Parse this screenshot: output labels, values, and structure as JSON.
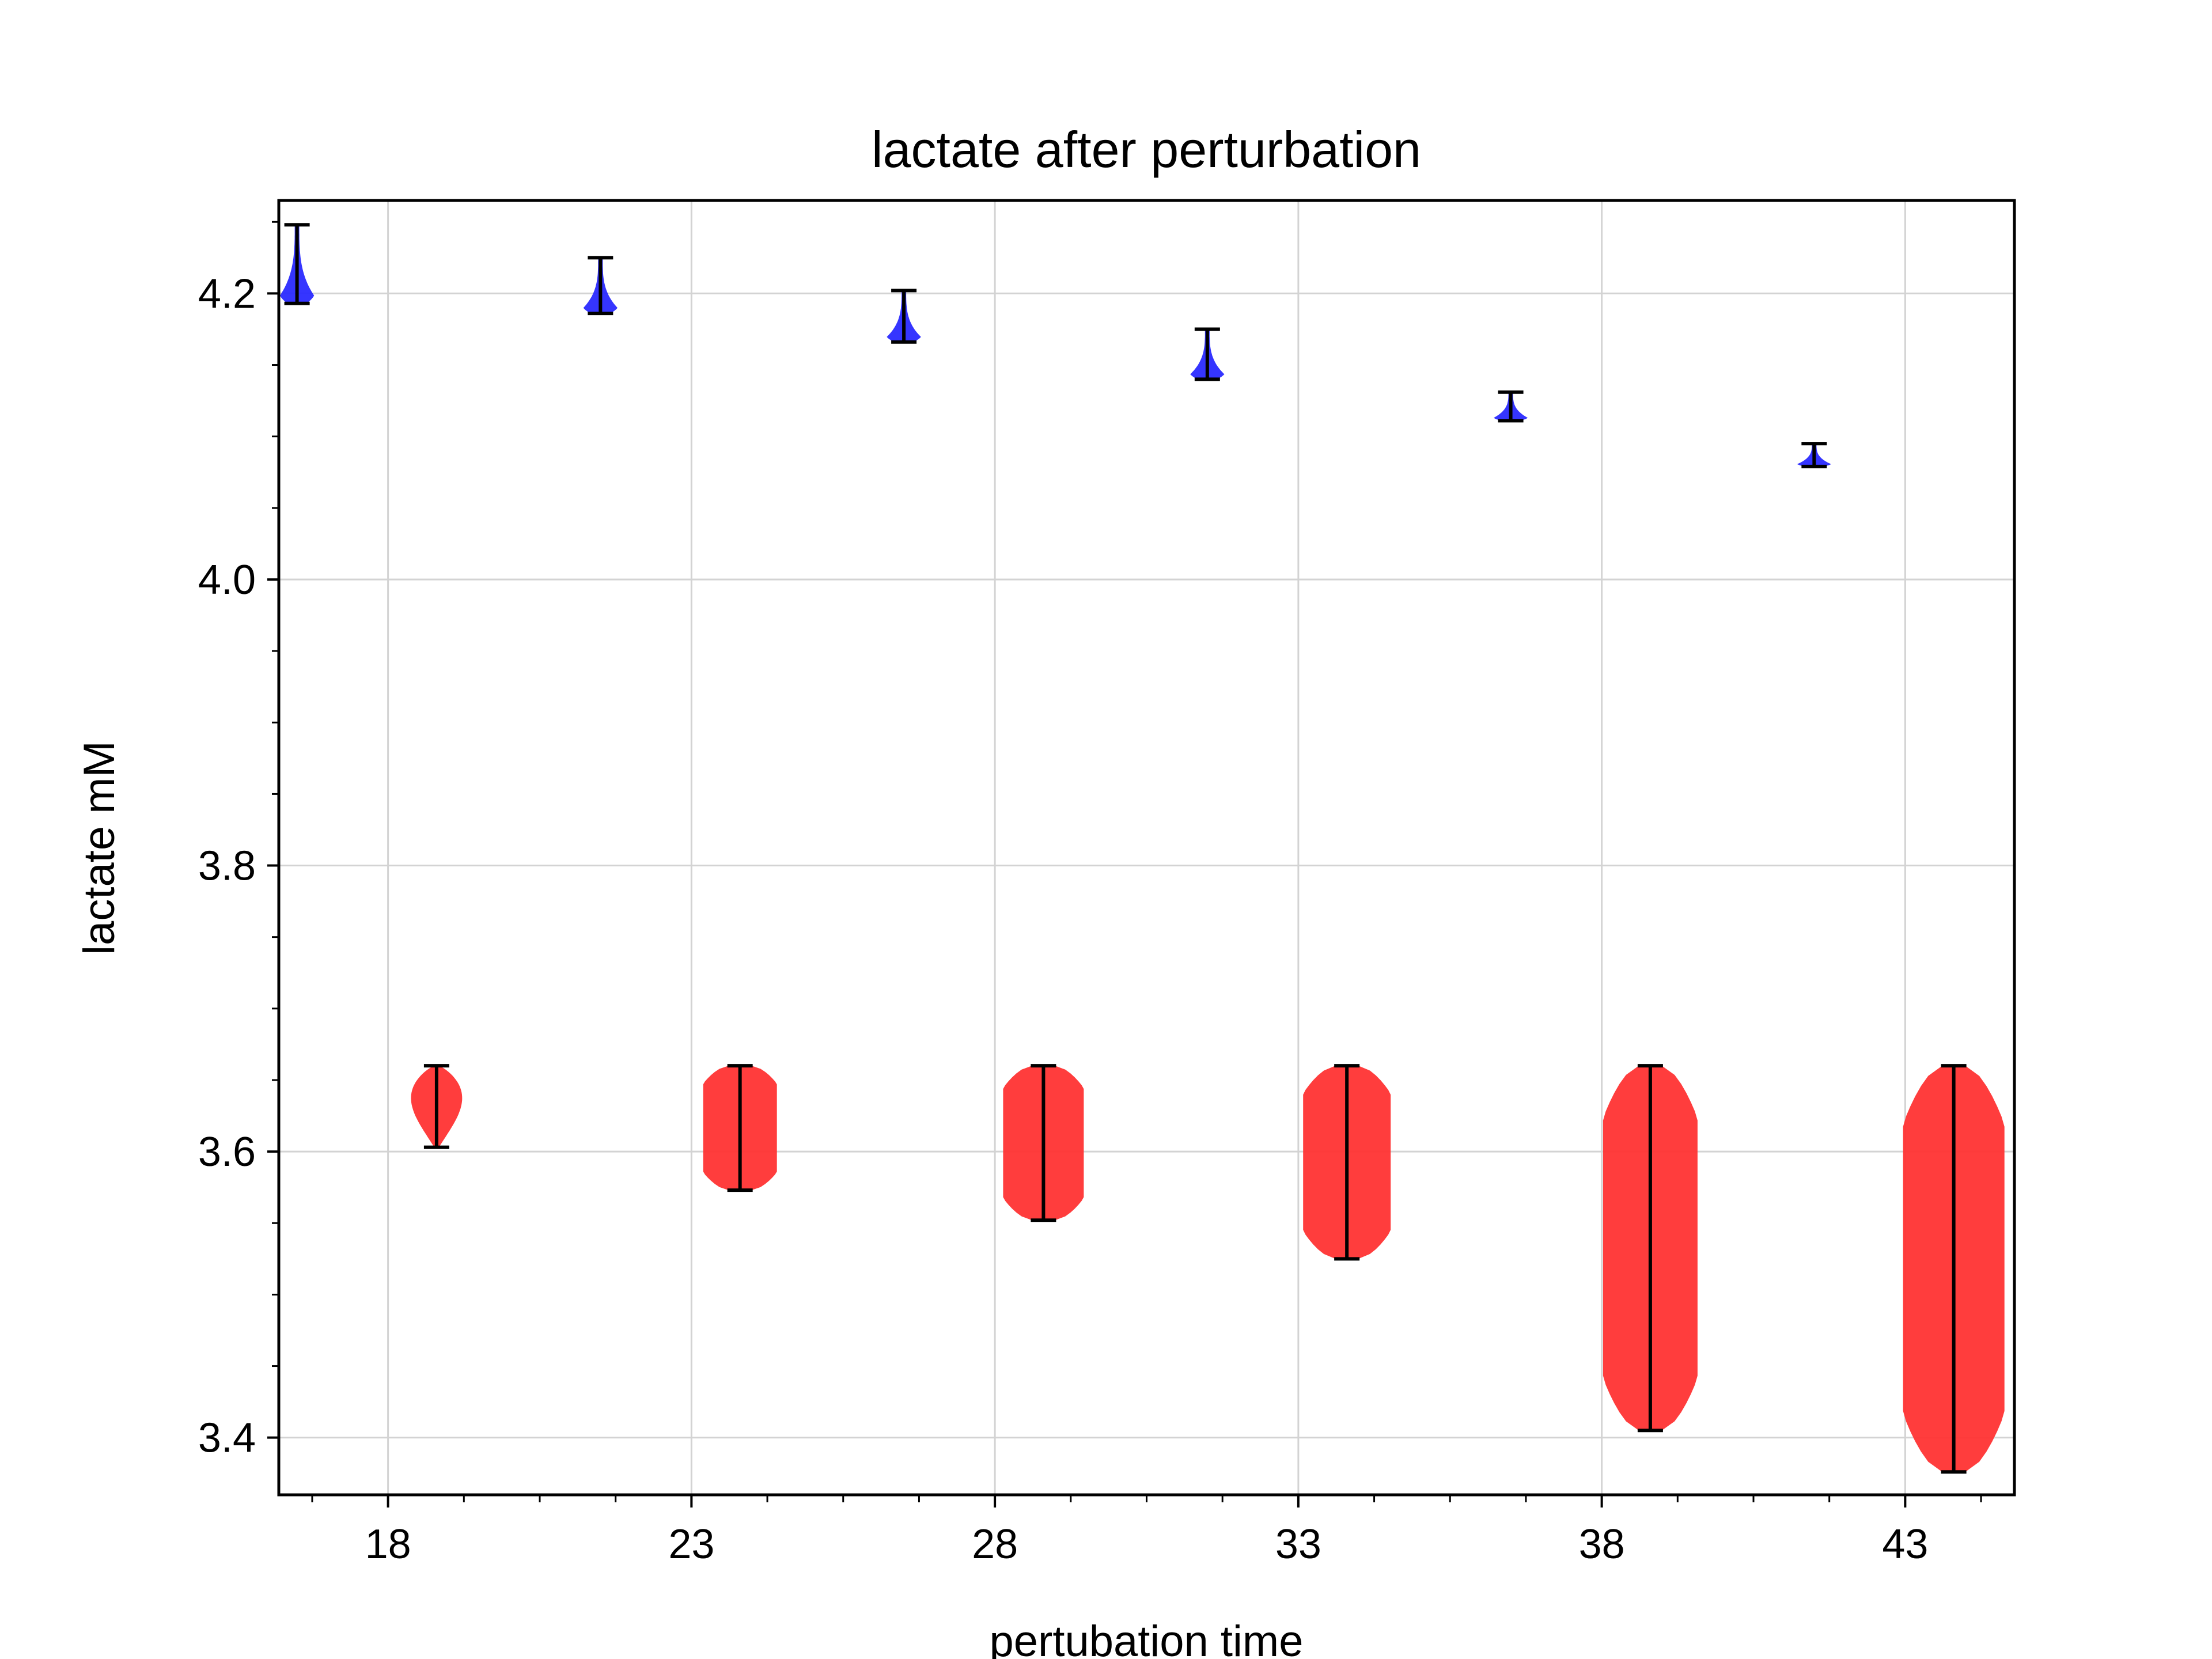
{
  "chart_data": {
    "type": "violin",
    "title": "lactate after perturbation",
    "xlabel": "pertubation time",
    "ylabel": "lactate mM",
    "xlim": [
      16.2,
      44.8
    ],
    "ylim": [
      3.36,
      4.265
    ],
    "xticks": [
      18,
      23,
      28,
      33,
      38,
      43
    ],
    "xtick_labels": [
      "18",
      "23",
      "28",
      "33",
      "38",
      "43"
    ],
    "x_minor_step": 1.25,
    "yticks": [
      3.4,
      3.6,
      3.8,
      4.0,
      4.2
    ],
    "ytick_labels": [
      "3.4",
      "3.6",
      "3.8",
      "4.0",
      "4.2"
    ],
    "y_minor_step": 0.05,
    "grid": true,
    "series": [
      {
        "color": "#2a2aff",
        "violins": [
          {
            "x": 16.5,
            "min": 4.193,
            "max": 4.248
          },
          {
            "x": 21.5,
            "min": 4.186,
            "max": 4.225
          },
          {
            "x": 26.5,
            "min": 4.166,
            "max": 4.202
          },
          {
            "x": 31.5,
            "min": 4.14,
            "max": 4.175
          },
          {
            "x": 36.5,
            "min": 4.111,
            "max": 4.131
          },
          {
            "x": 41.5,
            "min": 4.079,
            "max": 4.095
          }
        ]
      },
      {
        "color": "#ff3333",
        "violins": [
          {
            "x": 18.8,
            "min": 3.603,
            "max": 3.66
          },
          {
            "x": 23.8,
            "min": 3.573,
            "max": 3.66
          },
          {
            "x": 28.8,
            "min": 3.552,
            "max": 3.66
          },
          {
            "x": 33.8,
            "min": 3.525,
            "max": 3.66
          },
          {
            "x": 38.8,
            "min": 3.405,
            "max": 3.66
          },
          {
            "x": 43.8,
            "min": 3.376,
            "max": 3.66
          }
        ]
      }
    ]
  }
}
